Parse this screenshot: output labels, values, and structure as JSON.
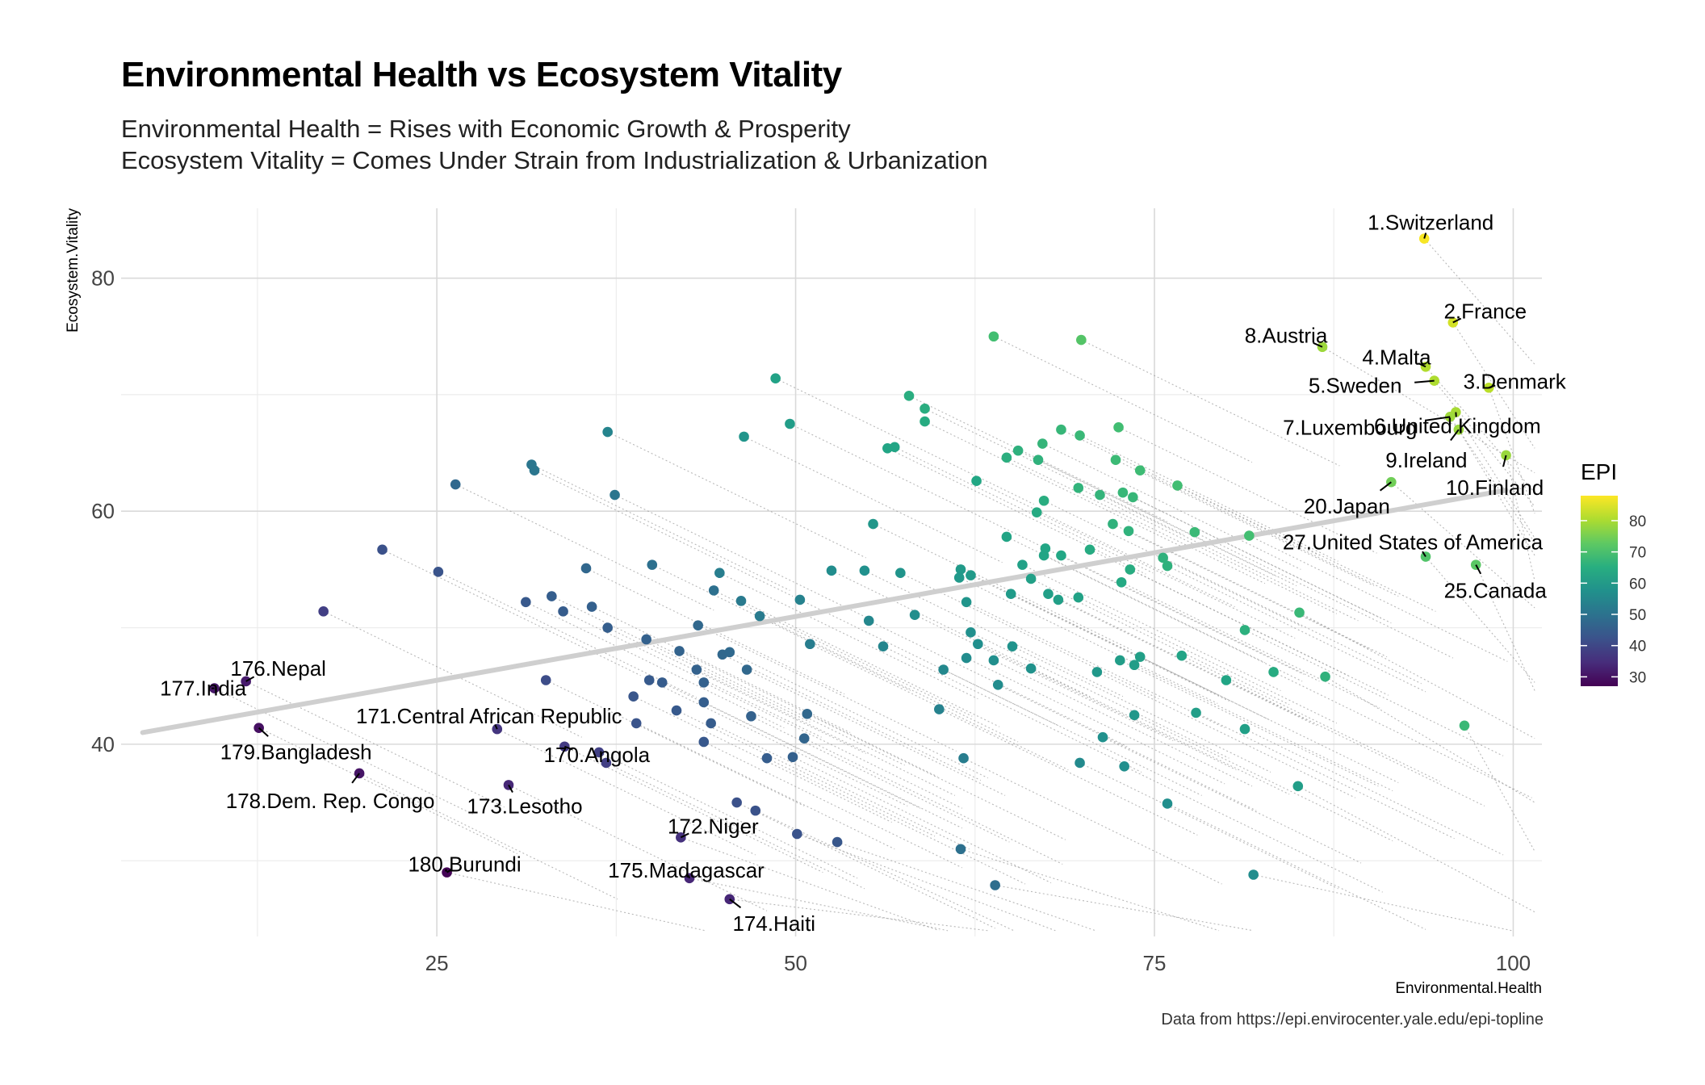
{
  "header": {
    "title": "Environmental Health vs Ecosystem Vitality",
    "subtitle_line1": "Environmental Health = Rises with Economic Growth & Prosperity",
    "subtitle_line2": "Ecosystem Vitality = Comes Under Strain from Industrialization & Urbanization",
    "caption": "Data from https://epi.envirocenter.yale.edu/epi-topline"
  },
  "chart_data": {
    "type": "scatter",
    "xlabel": "Environmental.Health",
    "ylabel": "Ecosystem.Vitality",
    "xlim": [
      3,
      102
    ],
    "ylim": [
      23.5,
      86
    ],
    "xticks": [
      25,
      50,
      75,
      100
    ],
    "yticks": [
      40,
      60,
      80
    ],
    "grid": true,
    "legend": {
      "title": "EPI",
      "placement": "right",
      "range": [
        27,
        88
      ],
      "ticks": [
        30,
        40,
        50,
        60,
        70,
        80
      ]
    },
    "trend_line": {
      "x": [
        4.5,
        99.5
      ],
      "y": [
        41.0,
        61.8
      ]
    },
    "labeled_points": [
      {
        "label": "1.Switzerland",
        "x": 93.8,
        "y": 83.4,
        "epi": 87.4
      },
      {
        "label": "2.France",
        "x": 95.8,
        "y": 76.2,
        "epi": 84.0
      },
      {
        "label": "3.Denmark",
        "x": 98.3,
        "y": 70.6,
        "epi": 81.6
      },
      {
        "label": "4.Malta",
        "x": 93.9,
        "y": 72.4,
        "epi": 80.9
      },
      {
        "label": "5.Sweden",
        "x": 94.5,
        "y": 71.2,
        "epi": 80.5
      },
      {
        "label": "6.United Kingdom",
        "x": 96.0,
        "y": 68.5,
        "epi": 79.9
      },
      {
        "label": "7.Luxembourg",
        "x": 95.6,
        "y": 68.1,
        "epi": 79.1
      },
      {
        "label": "8.Austria",
        "x": 86.7,
        "y": 74.1,
        "epi": 79.0
      },
      {
        "label": "9.Ireland",
        "x": 96.2,
        "y": 67.0,
        "epi": 78.8
      },
      {
        "label": "10.Finland",
        "x": 99.5,
        "y": 64.8,
        "epi": 78.6
      },
      {
        "label": "20.Japan",
        "x": 91.5,
        "y": 62.5,
        "epi": 74.7
      },
      {
        "label": "25.Canada",
        "x": 97.4,
        "y": 55.4,
        "epi": 72.2
      },
      {
        "label": "27.United States of America",
        "x": 93.9,
        "y": 56.1,
        "epi": 71.2
      },
      {
        "label": "170.Angola",
        "x": 33.9,
        "y": 39.8,
        "epi": 37.4
      },
      {
        "label": "171.Central African Republic",
        "x": 29.2,
        "y": 41.3,
        "epi": 36.4
      },
      {
        "label": "172.Niger",
        "x": 42.0,
        "y": 32.0,
        "epi": 35.7
      },
      {
        "label": "173.Lesotho",
        "x": 30.0,
        "y": 36.5,
        "epi": 33.8
      },
      {
        "label": "174.Haiti",
        "x": 45.4,
        "y": 26.7,
        "epi": 33.7
      },
      {
        "label": "175.Madagascar",
        "x": 42.6,
        "y": 28.5,
        "epi": 33.7
      },
      {
        "label": "176.Nepal",
        "x": 11.7,
        "y": 45.4,
        "epi": 31.4
      },
      {
        "label": "177.India",
        "x": 9.5,
        "y": 44.8,
        "epi": 30.6
      },
      {
        "label": "178.Dem. Rep. Congo",
        "x": 19.6,
        "y": 37.5,
        "epi": 30.4
      },
      {
        "label": "179.Bangladesh",
        "x": 12.6,
        "y": 41.4,
        "epi": 29.6
      },
      {
        "label": "180.Burundi",
        "x": 25.7,
        "y": 29.0,
        "epi": 27.4
      }
    ],
    "points": [
      {
        "x": 63.8,
        "y": 75.0,
        "epi": 69.4
      },
      {
        "x": 69.9,
        "y": 74.7,
        "epi": 71.5
      },
      {
        "x": 48.6,
        "y": 71.4,
        "epi": 62.0
      },
      {
        "x": 57.9,
        "y": 69.9,
        "epi": 64.9
      },
      {
        "x": 59.0,
        "y": 68.8,
        "epi": 64.9
      },
      {
        "x": 59.0,
        "y": 67.7,
        "epi": 64.5
      },
      {
        "x": 49.6,
        "y": 67.5,
        "epi": 60.6
      },
      {
        "x": 68.5,
        "y": 67.0,
        "epi": 67.4
      },
      {
        "x": 69.8,
        "y": 66.5,
        "epi": 67.8
      },
      {
        "x": 72.5,
        "y": 67.2,
        "epi": 69.1
      },
      {
        "x": 46.4,
        "y": 66.4,
        "epi": 58.7
      },
      {
        "x": 67.2,
        "y": 65.8,
        "epi": 66.9
      },
      {
        "x": 56.4,
        "y": 65.4,
        "epi": 62.7
      },
      {
        "x": 56.9,
        "y": 65.5,
        "epi": 62.9
      },
      {
        "x": 65.5,
        "y": 65.2,
        "epi": 65.8
      },
      {
        "x": 64.7,
        "y": 64.6,
        "epi": 65.3
      },
      {
        "x": 66.9,
        "y": 64.4,
        "epi": 66.1
      },
      {
        "x": 72.3,
        "y": 64.4,
        "epi": 68.3
      },
      {
        "x": 74.0,
        "y": 63.5,
        "epi": 68.6
      },
      {
        "x": 62.6,
        "y": 62.6,
        "epi": 63.4
      },
      {
        "x": 76.6,
        "y": 62.2,
        "epi": 69.2
      },
      {
        "x": 69.7,
        "y": 62.0,
        "epi": 66.4
      },
      {
        "x": 72.8,
        "y": 61.6,
        "epi": 67.5
      },
      {
        "x": 71.2,
        "y": 61.4,
        "epi": 66.8
      },
      {
        "x": 73.5,
        "y": 61.2,
        "epi": 67.4
      },
      {
        "x": 67.3,
        "y": 60.9,
        "epi": 64.8
      },
      {
        "x": 66.8,
        "y": 59.9,
        "epi": 64.2
      },
      {
        "x": 55.4,
        "y": 58.9,
        "epi": 59.2
      },
      {
        "x": 72.1,
        "y": 58.9,
        "epi": 66.0
      },
      {
        "x": 73.2,
        "y": 58.3,
        "epi": 66.2
      },
      {
        "x": 77.8,
        "y": 58.2,
        "epi": 68.0
      },
      {
        "x": 81.6,
        "y": 57.9,
        "epi": 69.5
      },
      {
        "x": 64.7,
        "y": 57.8,
        "epi": 62.6
      },
      {
        "x": 70.5,
        "y": 56.7,
        "epi": 64.4
      },
      {
        "x": 67.4,
        "y": 56.8,
        "epi": 63.1
      },
      {
        "x": 67.3,
        "y": 56.2,
        "epi": 62.9
      },
      {
        "x": 68.5,
        "y": 56.2,
        "epi": 63.3
      },
      {
        "x": 75.6,
        "y": 56.0,
        "epi": 66.1
      },
      {
        "x": 75.9,
        "y": 55.3,
        "epi": 65.9
      },
      {
        "x": 65.8,
        "y": 55.4,
        "epi": 61.7
      },
      {
        "x": 73.3,
        "y": 55.0,
        "epi": 64.7
      },
      {
        "x": 61.5,
        "y": 55.0,
        "epi": 59.9
      },
      {
        "x": 61.4,
        "y": 54.3,
        "epi": 59.6
      },
      {
        "x": 62.2,
        "y": 54.5,
        "epi": 59.9
      },
      {
        "x": 66.4,
        "y": 54.2,
        "epi": 61.4
      },
      {
        "x": 72.7,
        "y": 53.9,
        "epi": 63.9
      },
      {
        "x": 52.5,
        "y": 54.9,
        "epi": 56.5
      },
      {
        "x": 54.8,
        "y": 54.9,
        "epi": 57.5
      },
      {
        "x": 57.3,
        "y": 54.7,
        "epi": 58.5
      },
      {
        "x": 44.7,
        "y": 54.7,
        "epi": 52.8
      },
      {
        "x": 65.0,
        "y": 52.9,
        "epi": 60.2
      },
      {
        "x": 67.6,
        "y": 52.9,
        "epi": 61.3
      },
      {
        "x": 69.7,
        "y": 52.6,
        "epi": 61.9
      },
      {
        "x": 68.3,
        "y": 52.4,
        "epi": 61.3
      },
      {
        "x": 61.9,
        "y": 52.2,
        "epi": 58.7
      },
      {
        "x": 50.3,
        "y": 52.4,
        "epi": 53.8
      },
      {
        "x": 46.2,
        "y": 52.3,
        "epi": 51.9
      },
      {
        "x": 58.3,
        "y": 51.1,
        "epi": 56.8
      },
      {
        "x": 85.1,
        "y": 51.3,
        "epi": 67.8
      },
      {
        "x": 47.5,
        "y": 51.0,
        "epi": 52.0
      },
      {
        "x": 55.1,
        "y": 50.6,
        "epi": 55.0
      },
      {
        "x": 81.3,
        "y": 49.8,
        "epi": 65.6
      },
      {
        "x": 62.2,
        "y": 49.6,
        "epi": 57.3
      },
      {
        "x": 62.7,
        "y": 48.6,
        "epi": 57.2
      },
      {
        "x": 56.1,
        "y": 48.4,
        "epi": 54.5
      },
      {
        "x": 65.1,
        "y": 48.4,
        "epi": 58.1
      },
      {
        "x": 51.0,
        "y": 48.6,
        "epi": 52.6
      },
      {
        "x": 63.8,
        "y": 47.2,
        "epi": 57.0
      },
      {
        "x": 61.9,
        "y": 47.4,
        "epi": 56.3
      },
      {
        "x": 72.6,
        "y": 47.2,
        "epi": 60.6
      },
      {
        "x": 74.0,
        "y": 47.5,
        "epi": 61.3
      },
      {
        "x": 76.9,
        "y": 47.6,
        "epi": 62.5
      },
      {
        "x": 73.6,
        "y": 46.8,
        "epi": 60.8
      },
      {
        "x": 71.0,
        "y": 46.2,
        "epi": 59.5
      },
      {
        "x": 66.4,
        "y": 46.5,
        "epi": 57.8
      },
      {
        "x": 60.3,
        "y": 46.4,
        "epi": 55.3
      },
      {
        "x": 83.3,
        "y": 46.2,
        "epi": 64.5
      },
      {
        "x": 86.9,
        "y": 45.8,
        "epi": 66.0
      },
      {
        "x": 80.0,
        "y": 45.5,
        "epi": 62.9
      },
      {
        "x": 64.1,
        "y": 45.1,
        "epi": 56.3
      },
      {
        "x": 73.6,
        "y": 42.5,
        "epi": 59.1
      },
      {
        "x": 77.9,
        "y": 42.7,
        "epi": 60.9
      },
      {
        "x": 81.3,
        "y": 41.3,
        "epi": 61.6
      },
      {
        "x": 96.6,
        "y": 41.6,
        "epi": 67.9
      },
      {
        "x": 60.0,
        "y": 43.0,
        "epi": 53.8
      },
      {
        "x": 71.4,
        "y": 40.6,
        "epi": 57.5
      },
      {
        "x": 69.8,
        "y": 38.4,
        "epi": 55.9
      },
      {
        "x": 72.9,
        "y": 38.1,
        "epi": 57.0
      },
      {
        "x": 61.7,
        "y": 38.8,
        "epi": 52.7
      },
      {
        "x": 85.0,
        "y": 36.4,
        "epi": 61.0
      },
      {
        "x": 75.9,
        "y": 34.9,
        "epi": 57.0
      },
      {
        "x": 61.5,
        "y": 31.0,
        "epi": 49.5
      },
      {
        "x": 63.9,
        "y": 27.9,
        "epi": 49.0
      },
      {
        "x": 81.9,
        "y": 28.8,
        "epi": 56.5
      },
      {
        "x": 31.6,
        "y": 64.0,
        "epi": 51.0
      },
      {
        "x": 31.8,
        "y": 63.5,
        "epi": 50.8
      },
      {
        "x": 26.3,
        "y": 62.3,
        "epi": 47.8
      },
      {
        "x": 36.9,
        "y": 66.8,
        "epi": 54.3
      },
      {
        "x": 37.4,
        "y": 61.4,
        "epi": 51.0
      },
      {
        "x": 21.2,
        "y": 56.7,
        "epi": 42.2
      },
      {
        "x": 25.1,
        "y": 54.8,
        "epi": 42.9
      },
      {
        "x": 17.1,
        "y": 51.4,
        "epi": 38.3
      },
      {
        "x": 35.4,
        "y": 55.1,
        "epi": 47.3
      },
      {
        "x": 40.0,
        "y": 55.4,
        "epi": 49.5
      },
      {
        "x": 31.2,
        "y": 52.2,
        "epi": 43.9
      },
      {
        "x": 33.0,
        "y": 52.7,
        "epi": 45.0
      },
      {
        "x": 33.8,
        "y": 51.4,
        "epi": 44.7
      },
      {
        "x": 35.8,
        "y": 51.8,
        "epi": 45.5
      },
      {
        "x": 44.3,
        "y": 53.2,
        "epi": 49.4
      },
      {
        "x": 36.9,
        "y": 50.0,
        "epi": 45.1
      },
      {
        "x": 43.2,
        "y": 50.2,
        "epi": 47.6
      },
      {
        "x": 39.6,
        "y": 49.0,
        "epi": 45.8
      },
      {
        "x": 41.9,
        "y": 48.0,
        "epi": 46.3
      },
      {
        "x": 44.9,
        "y": 47.7,
        "epi": 47.4
      },
      {
        "x": 45.4,
        "y": 47.9,
        "epi": 47.7
      },
      {
        "x": 46.6,
        "y": 46.4,
        "epi": 47.4
      },
      {
        "x": 43.1,
        "y": 46.4,
        "epi": 46.0
      },
      {
        "x": 32.6,
        "y": 45.5,
        "epi": 41.3
      },
      {
        "x": 39.8,
        "y": 45.5,
        "epi": 44.3
      },
      {
        "x": 40.7,
        "y": 45.3,
        "epi": 44.6
      },
      {
        "x": 43.6,
        "y": 45.3,
        "epi": 45.7
      },
      {
        "x": 38.7,
        "y": 44.1,
        "epi": 43.4
      },
      {
        "x": 43.6,
        "y": 43.6,
        "epi": 45.2
      },
      {
        "x": 41.7,
        "y": 42.9,
        "epi": 44.1
      },
      {
        "x": 50.8,
        "y": 42.6,
        "epi": 47.6
      },
      {
        "x": 46.9,
        "y": 42.4,
        "epi": 46.0
      },
      {
        "x": 44.1,
        "y": 41.8,
        "epi": 44.6
      },
      {
        "x": 38.9,
        "y": 41.8,
        "epi": 42.8
      },
      {
        "x": 50.6,
        "y": 40.5,
        "epi": 46.7
      },
      {
        "x": 43.6,
        "y": 40.2,
        "epi": 43.8
      },
      {
        "x": 48.0,
        "y": 38.8,
        "epi": 44.9
      },
      {
        "x": 49.8,
        "y": 38.9,
        "epi": 45.6
      },
      {
        "x": 45.9,
        "y": 35.0,
        "epi": 42.3
      },
      {
        "x": 47.2,
        "y": 34.3,
        "epi": 42.5
      },
      {
        "x": 50.1,
        "y": 32.3,
        "epi": 42.7
      },
      {
        "x": 52.9,
        "y": 31.6,
        "epi": 43.6
      },
      {
        "x": 36.3,
        "y": 39.3,
        "epi": 38.6
      },
      {
        "x": 36.8,
        "y": 38.4,
        "epi": 38.3
      }
    ]
  }
}
